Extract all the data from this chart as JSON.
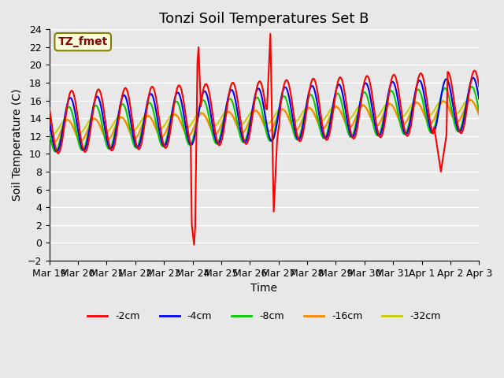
{
  "title": "Tonzi Soil Temperatures Set B",
  "xlabel": "Time",
  "ylabel": "Soil Temperature (C)",
  "annotation": "TZ_fmet",
  "ylim": [
    -2,
    24
  ],
  "yticks": [
    -2,
    0,
    2,
    4,
    6,
    8,
    10,
    12,
    14,
    16,
    18,
    20,
    22,
    24
  ],
  "series_colors": {
    "-2cm": "#ff0000",
    "-4cm": "#0000ff",
    "-8cm": "#00cc00",
    "-16cm": "#ff8800",
    "-32cm": "#cccc00"
  },
  "series_linewidths": {
    "-2cm": 1.5,
    "-4cm": 1.5,
    "-8cm": 1.5,
    "-16cm": 1.5,
    "-32cm": 1.5
  },
  "background_color": "#e8e8e8",
  "plot_bg_color": "#e8e8e8",
  "grid_color": "#ffffff",
  "title_fontsize": 13,
  "axis_fontsize": 10,
  "tick_fontsize": 9,
  "legend_fontsize": 9,
  "x_tick_labels": [
    "Mar 19",
    "Mar 20",
    "Mar 21",
    "Mar 22",
    "Mar 23",
    "Mar 24",
    "Mar 25",
    "Mar 26",
    "Mar 27",
    "Mar 28",
    "Mar 29",
    "Mar 30",
    "Mar 31",
    "Apr 1",
    "Apr 2",
    "Apr 3"
  ],
  "n_points": 384,
  "days": 16
}
